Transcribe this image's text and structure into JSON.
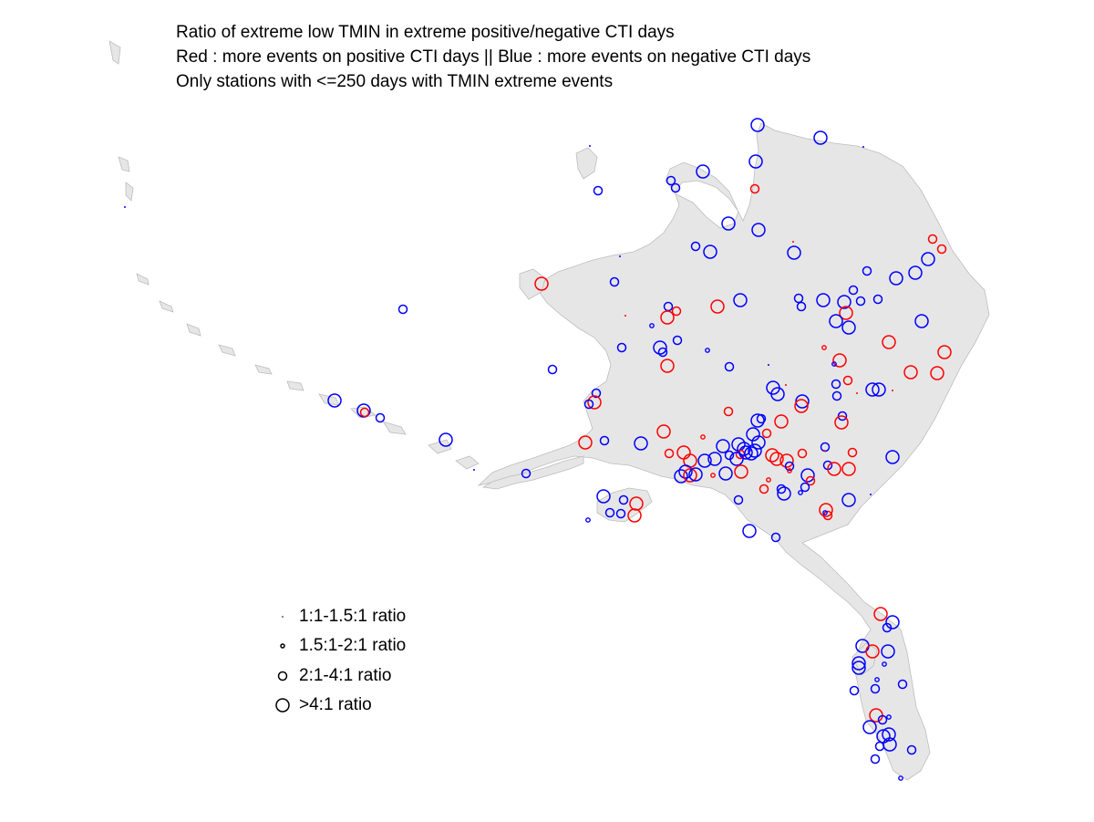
{
  "title_lines": [
    "Ratio of extreme low TMIN in extreme positive/negative CTI days",
    "Red : more events on positive CTI days || Blue : more events on negative CTI days",
    "Only stations with <=250 days with TMIN extreme events"
  ],
  "legend": [
    {
      "label": "1:1-1.5:1 ratio",
      "size_class": "tiny"
    },
    {
      "label": "1.5:1-2:1 ratio",
      "size_class": "small"
    },
    {
      "label": "2:1-4:1 ratio",
      "size_class": "medium"
    },
    {
      "label": ">4:1 ratio",
      "size_class": "large"
    }
  ],
  "colors": {
    "positive": "#ff0000",
    "negative": "#0000ff",
    "land": "#e6e6e6",
    "coast": "#bdbdbd",
    "legend_symbol": "#000000"
  }
}
